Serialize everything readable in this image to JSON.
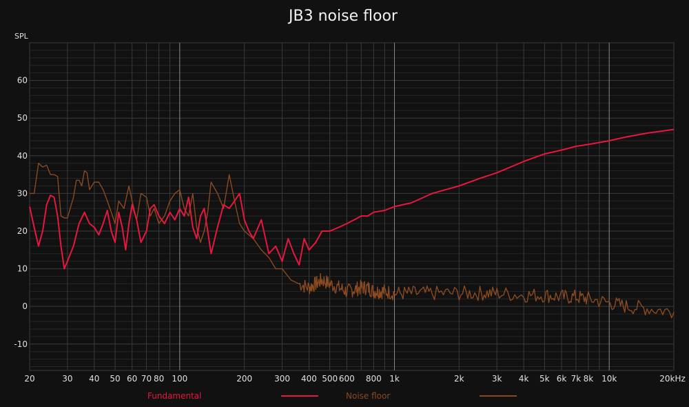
{
  "chart_data": {
    "type": "line",
    "title": "JB3 noise floor",
    "ylabel": "SPL",
    "xlabel": "",
    "x_scale": "log",
    "xlim": [
      20,
      20000
    ],
    "ylim": [
      -17,
      70
    ],
    "grid": true,
    "legend_position": "bottom",
    "y_ticks": [
      -10,
      0,
      10,
      20,
      30,
      40,
      50,
      60
    ],
    "y_tick_labels": [
      "-10",
      "0",
      "10",
      "20",
      "30",
      "40",
      "50",
      "60"
    ],
    "x_ticks": [
      20,
      30,
      40,
      50,
      60,
      70,
      80,
      100,
      200,
      300,
      400,
      500,
      600,
      800,
      1000,
      2000,
      3000,
      4000,
      5000,
      6000,
      7000,
      8000,
      10000,
      20000
    ],
    "x_tick_labels": [
      "20",
      "30",
      "40",
      "50",
      "60",
      "70",
      "80",
      "100",
      "200",
      "300",
      "400",
      "500",
      "600",
      "800",
      "1k",
      "2k",
      "3k",
      "4k",
      "5k",
      "6k",
      "7k",
      "8k",
      "10k",
      "20kHz"
    ],
    "series": [
      {
        "name": "Fundamental",
        "color": "#e8173d",
        "x": [
          20,
          21,
          22,
          23,
          24,
          25,
          26,
          27,
          28,
          29,
          30,
          32,
          34,
          36,
          38,
          40,
          42,
          44,
          46,
          48,
          50,
          52,
          54,
          56,
          58,
          60,
          63,
          66,
          70,
          73,
          76,
          80,
          85,
          90,
          95,
          100,
          105,
          110,
          115,
          120,
          125,
          130,
          135,
          140,
          150,
          160,
          170,
          180,
          190,
          200,
          210,
          220,
          240,
          260,
          280,
          300,
          320,
          340,
          360,
          380,
          400,
          430,
          460,
          500,
          550,
          600,
          650,
          700,
          750,
          800,
          900,
          1000,
          1200,
          1500,
          2000,
          2500,
          3000,
          4000,
          5000,
          6000,
          7000,
          8000,
          10000,
          12000,
          15000,
          20000
        ],
        "y": [
          26.5,
          21,
          16,
          20,
          27,
          29.5,
          29,
          24,
          16,
          10,
          12,
          16,
          22,
          25,
          22,
          21,
          19,
          22,
          25.5,
          20,
          17,
          25,
          21,
          15,
          22,
          27,
          23,
          17,
          20,
          26,
          27,
          24,
          22,
          25,
          23,
          26,
          24,
          29,
          21,
          18,
          24,
          26,
          20,
          14,
          21,
          27,
          26,
          28,
          30,
          23,
          20,
          18,
          23,
          14,
          16,
          12,
          18,
          14,
          11,
          18,
          15,
          17,
          20,
          20,
          21,
          22,
          23,
          24,
          24,
          25,
          25.5,
          26.5,
          27.5,
          30,
          32,
          34,
          35.5,
          38.5,
          40.5,
          41.5,
          42.5,
          43,
          44,
          45,
          46,
          47
        ]
      },
      {
        "name": "Noise floor",
        "color": "#8b4a1f",
        "x": [
          20,
          21,
          22,
          23,
          24,
          25,
          26,
          27,
          28,
          29,
          30,
          32,
          33,
          34,
          35,
          36,
          37,
          38,
          40,
          42,
          44,
          46,
          48,
          50,
          52,
          55,
          58,
          60,
          63,
          66,
          70,
          73,
          76,
          80,
          85,
          90,
          95,
          100,
          105,
          110,
          115,
          120,
          125,
          130,
          135,
          140,
          150,
          160,
          170,
          180,
          190,
          200,
          220,
          240,
          260,
          280,
          300,
          330,
          360,
          400,
          430,
          460,
          500,
          550,
          600,
          650,
          700,
          750,
          800,
          850,
          900,
          1000,
          1200,
          1500,
          2000,
          2500,
          3000,
          4000,
          5000,
          6000,
          7000,
          8000,
          10000,
          12000,
          15000,
          20000
        ],
        "y": [
          30,
          30,
          38,
          37,
          37.5,
          35,
          35,
          34.5,
          24,
          23.5,
          23.5,
          29,
          33.5,
          33.5,
          32,
          36,
          35.5,
          31,
          33,
          33,
          31,
          28,
          25,
          22,
          28,
          26,
          32,
          28,
          23,
          30,
          29,
          24,
          26,
          22,
          24,
          28,
          30,
          31,
          26,
          24,
          30,
          21,
          17,
          20,
          25,
          33,
          30,
          26,
          35,
          28,
          22,
          20,
          18,
          15,
          13,
          10,
          10,
          7,
          6,
          5,
          6,
          7,
          6,
          5,
          4,
          4.5,
          5,
          5,
          4,
          4,
          4,
          3.5,
          3.5,
          3.5,
          3.5,
          3.5,
          3.5,
          3,
          3,
          2.5,
          2.5,
          2,
          1,
          0,
          -0.5,
          -1.5
        ]
      }
    ]
  }
}
